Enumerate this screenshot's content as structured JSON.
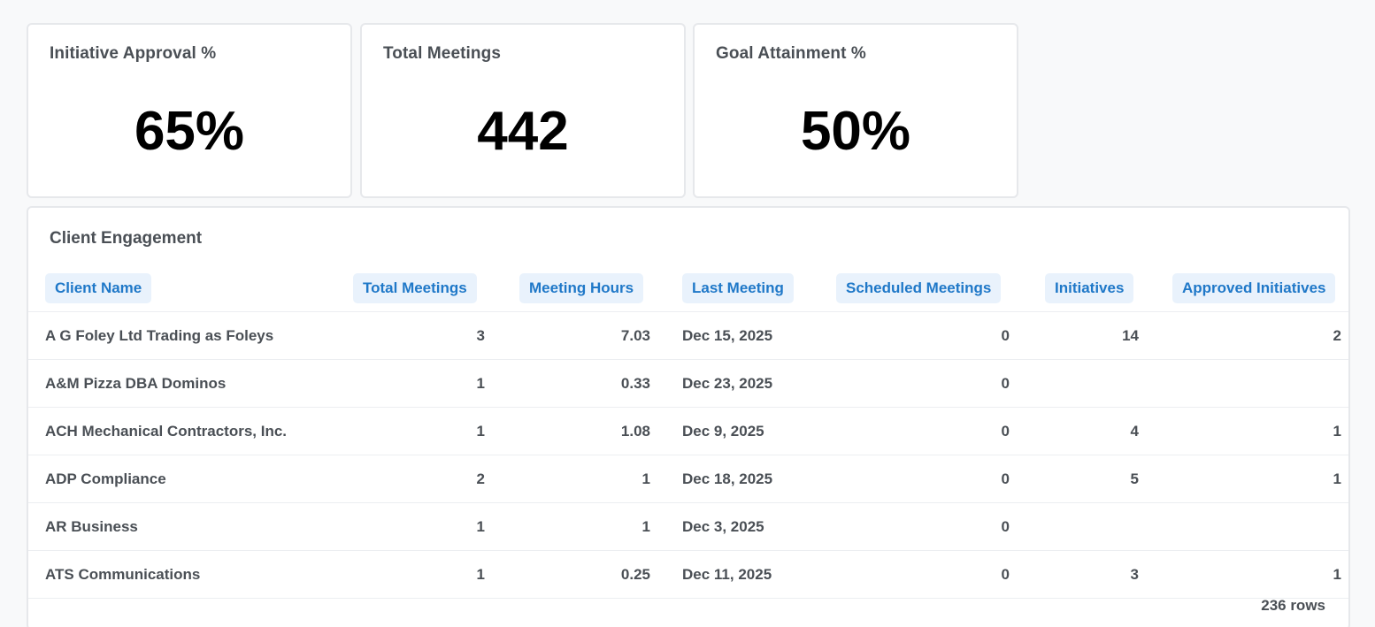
{
  "kpis": [
    {
      "title": "Initiative Approval %",
      "value": "65%"
    },
    {
      "title": "Total Meetings",
      "value": "442"
    },
    {
      "title": "Goal Attainment %",
      "value": "50%"
    }
  ],
  "table": {
    "title": "Client Engagement",
    "columns": [
      "Client Name",
      "Total Meetings",
      "Meeting Hours",
      "Last Meeting",
      "Scheduled Meetings",
      "Initiatives",
      "Approved Initiatives"
    ],
    "rows": [
      [
        "A G Foley Ltd Trading as Foleys",
        "3",
        "7.03",
        "Dec 15, 2025",
        "0",
        "14",
        "2"
      ],
      [
        "A&M Pizza DBA Dominos",
        "1",
        "0.33",
        "Dec 23, 2025",
        "0",
        "",
        ""
      ],
      [
        "ACH Mechanical Contractors, Inc.",
        "1",
        "1.08",
        "Dec 9, 2025",
        "0",
        "4",
        "1"
      ],
      [
        "ADP Compliance",
        "2",
        "1",
        "Dec 18, 2025",
        "0",
        "5",
        "1"
      ],
      [
        "AR Business",
        "1",
        "1",
        "Dec 3, 2025",
        "0",
        "",
        ""
      ],
      [
        "ATS Communications",
        "1",
        "0.25",
        "Dec 11, 2025",
        "0",
        "3",
        "1"
      ]
    ],
    "row_count": "236 rows"
  }
}
